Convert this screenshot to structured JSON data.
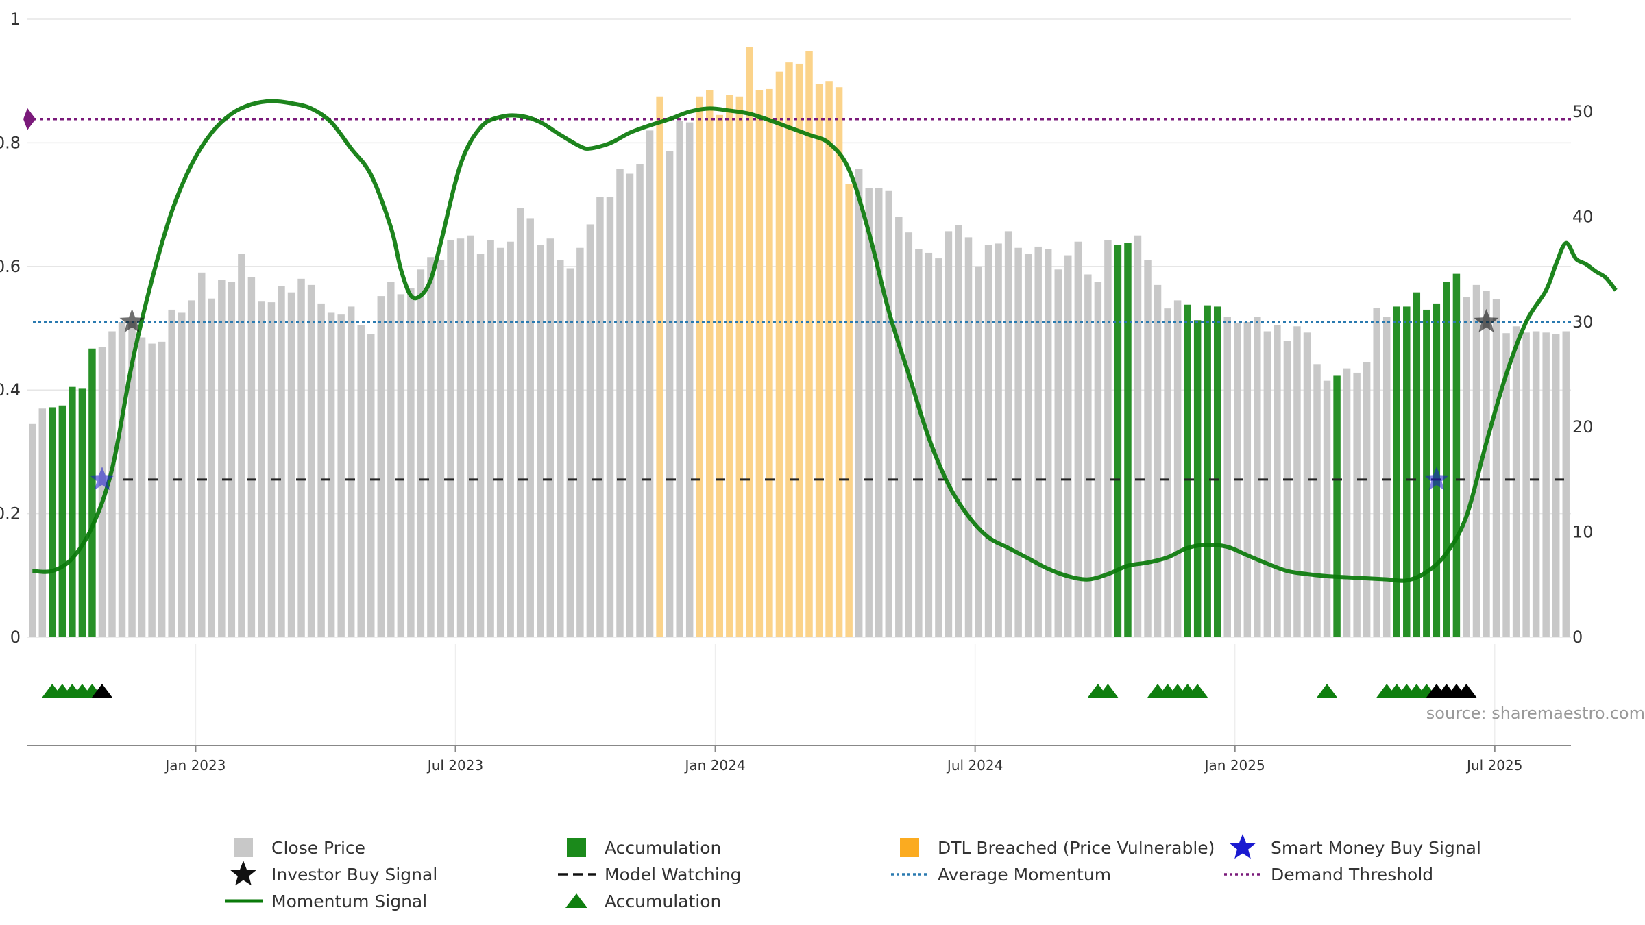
{
  "chart_data": {
    "type": "bar",
    "title": "",
    "source": "source: sharemaestro.com",
    "start_month": "2022-09",
    "period": "weekly",
    "x_ticks": [
      "Jan 2023",
      "Jul 2023",
      "Jan 2024",
      "Jul 2024",
      "Jan 2025",
      "Jul 2025"
    ],
    "left_axis": {
      "ylim": [
        0,
        1
      ],
      "ticks": [
        "0",
        "0.2",
        "0.4",
        "0.6",
        "0.8",
        "1"
      ]
    },
    "right_axis": {
      "ylim": [
        0,
        58.8
      ],
      "ticks": [
        "0",
        "10",
        "20",
        "30",
        "40",
        "50"
      ]
    },
    "close_price": [
      0.345,
      0.37,
      0.372,
      0.375,
      0.405,
      0.402,
      0.467,
      0.47,
      0.495,
      0.51,
      0.512,
      0.485,
      0.475,
      0.478,
      0.53,
      0.525,
      0.545,
      0.59,
      0.548,
      0.578,
      0.575,
      0.62,
      0.583,
      0.543,
      0.542,
      0.568,
      0.558,
      0.58,
      0.57,
      0.54,
      0.525,
      0.522,
      0.535,
      0.505,
      0.49,
      0.552,
      0.575,
      0.555,
      0.565,
      0.595,
      0.615,
      0.61,
      0.642,
      0.645,
      0.65,
      0.62,
      0.642,
      0.63,
      0.64,
      0.695,
      0.678,
      0.635,
      0.645,
      0.61,
      0.597,
      0.63,
      0.668,
      0.712,
      0.712,
      0.758,
      0.75,
      0.765,
      0.82,
      0.875,
      0.787,
      0.835,
      0.833,
      0.875,
      0.885,
      0.845,
      0.878,
      0.875,
      0.955,
      0.885,
      0.887,
      0.915,
      0.93,
      0.928,
      0.948,
      0.895,
      0.9,
      0.89,
      0.733,
      0.758,
      0.727,
      0.727,
      0.722,
      0.68,
      0.655,
      0.628,
      0.622,
      0.613,
      0.657,
      0.667,
      0.647,
      0.6,
      0.635,
      0.637,
      0.657,
      0.63,
      0.62,
      0.632,
      0.628,
      0.595,
      0.618,
      0.64,
      0.587,
      0.575,
      0.642,
      0.635,
      0.638,
      0.65,
      0.61,
      0.57,
      0.532,
      0.545,
      0.538,
      0.513,
      0.537,
      0.535,
      0.518,
      0.508,
      0.51,
      0.518,
      0.495,
      0.505,
      0.48,
      0.503,
      0.493,
      0.442,
      0.415,
      0.423,
      0.435,
      0.428,
      0.445,
      0.533,
      0.518,
      0.535,
      0.535,
      0.558,
      0.53,
      0.54,
      0.575,
      0.588,
      0.55,
      0.57,
      0.56,
      0.547,
      0.492,
      0.503,
      0.493,
      0.495,
      0.493,
      0.49,
      0.495
    ],
    "accumulation_weeks": [
      2,
      3,
      4,
      5,
      6,
      109,
      110,
      116,
      117,
      118,
      119,
      131,
      137,
      138,
      139,
      140,
      141,
      142,
      143
    ],
    "dtl_breached_weeks": [
      63,
      67,
      68,
      69,
      70,
      71,
      72,
      73,
      74,
      75,
      76,
      77,
      78,
      79,
      80,
      81,
      82
    ],
    "momentum_signal": [
      [
        0,
        6.3
      ],
      [
        2,
        6.3
      ],
      [
        4,
        7.5
      ],
      [
        6,
        10.5
      ],
      [
        8,
        16
      ],
      [
        10,
        26
      ],
      [
        12,
        34
      ],
      [
        14,
        40.5
      ],
      [
        16,
        45
      ],
      [
        18,
        48
      ],
      [
        20,
        49.8
      ],
      [
        22,
        50.7
      ],
      [
        24,
        51
      ],
      [
        26,
        50.8
      ],
      [
        28,
        50.3
      ],
      [
        30,
        49
      ],
      [
        32,
        46.5
      ],
      [
        34,
        44
      ],
      [
        36,
        39
      ],
      [
        37,
        35
      ],
      [
        38,
        32.5
      ],
      [
        39,
        32.5
      ],
      [
        40,
        34
      ],
      [
        41,
        37.5
      ],
      [
        43,
        45
      ],
      [
        45,
        48.5
      ],
      [
        47,
        49.5
      ],
      [
        49,
        49.6
      ],
      [
        51,
        49
      ],
      [
        53,
        47.8
      ],
      [
        55,
        46.7
      ],
      [
        56,
        46.5
      ],
      [
        58,
        47
      ],
      [
        60,
        48
      ],
      [
        62,
        48.7
      ],
      [
        64,
        49.3
      ],
      [
        66,
        50
      ],
      [
        68,
        50.3
      ],
      [
        70,
        50.1
      ],
      [
        72,
        49.8
      ],
      [
        74,
        49.2
      ],
      [
        76,
        48.5
      ],
      [
        78,
        47.8
      ],
      [
        80,
        47
      ],
      [
        82,
        44.5
      ],
      [
        84,
        38.5
      ],
      [
        86,
        31
      ],
      [
        88,
        25
      ],
      [
        90,
        19
      ],
      [
        92,
        14.5
      ],
      [
        94,
        11.5
      ],
      [
        96,
        9.5
      ],
      [
        98,
        8.5
      ],
      [
        100,
        7.5
      ],
      [
        102,
        6.5
      ],
      [
        104,
        5.8
      ],
      [
        106,
        5.5
      ],
      [
        108,
        6
      ],
      [
        110,
        6.8
      ],
      [
        112,
        7.1
      ],
      [
        114,
        7.6
      ],
      [
        116,
        8.5
      ],
      [
        118,
        8.8
      ],
      [
        120,
        8.6
      ],
      [
        122,
        7.8
      ],
      [
        124,
        7
      ],
      [
        126,
        6.3
      ],
      [
        128,
        6
      ],
      [
        130,
        5.8
      ],
      [
        132,
        5.7
      ],
      [
        134,
        5.6
      ],
      [
        136,
        5.5
      ],
      [
        138,
        5.4
      ],
      [
        140,
        6.2
      ],
      [
        142,
        8
      ],
      [
        144,
        11.5
      ],
      [
        146,
        18.5
      ],
      [
        148,
        25
      ],
      [
        150,
        30
      ],
      [
        152,
        33
      ],
      [
        153,
        35.5
      ],
      [
        154,
        37.5
      ],
      [
        155,
        36
      ],
      [
        156,
        35.5
      ],
      [
        157,
        34.8
      ],
      [
        158,
        34.2
      ],
      [
        159,
        33
      ]
    ],
    "average_momentum": 30,
    "model_watching": 15,
    "demand_threshold": 49.3,
    "smart_money_buy_signals": [
      [
        7,
        15
      ],
      [
        141,
        15
      ]
    ],
    "investor_buy_signals": [
      [
        10,
        30
      ],
      [
        146,
        30
      ]
    ],
    "accumulation_markers_green": [
      2,
      3,
      4,
      5,
      6,
      107,
      108,
      113,
      114,
      115,
      116,
      117,
      130,
      136,
      137,
      138,
      139,
      140
    ],
    "accumulation_markers_black": [
      7,
      141,
      142,
      143,
      144
    ],
    "legend": [
      {
        "key": "close",
        "label": "Close Price"
      },
      {
        "key": "accum_bar",
        "label": "Accumulation"
      },
      {
        "key": "dtl",
        "label": "DTL Breached (Price Vulnerable)"
      },
      {
        "key": "smart",
        "label": "Smart Money Buy Signal"
      },
      {
        "key": "investor",
        "label": "Investor Buy Signal"
      },
      {
        "key": "watch",
        "label": "Model Watching"
      },
      {
        "key": "avg",
        "label": "Average Momentum"
      },
      {
        "key": "demand",
        "label": "Demand Threshold"
      },
      {
        "key": "momentum",
        "label": "Momentum Signal"
      },
      {
        "key": "accum_tri",
        "label": "Accumulation"
      }
    ],
    "colors": {
      "close": "#c8c8c8",
      "accumulation": "#1b8a1b",
      "dtl": "#fbd38a",
      "momentum": "#0a7a0a",
      "average": "#2a7ab0",
      "demand": "#7a1a7a",
      "watch": "#222222",
      "smart": "#1a1ad0",
      "investor": "#111111",
      "tri_green": "#0f7f0f",
      "tri_black": "#000000",
      "grid": "#e6e6e6"
    }
  }
}
